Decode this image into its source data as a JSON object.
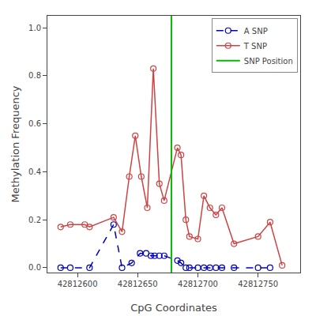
{
  "chart_data": {
    "type": "line",
    "xlabel": "CpG Coordinates",
    "ylabel": "Methylation Frequency",
    "xlim": [
      42812575,
      42812785
    ],
    "ylim": [
      -0.02,
      1.05
    ],
    "xticks": [
      42812600,
      42812650,
      42812700,
      42812750
    ],
    "yticks": [
      {
        "value": 0.0,
        "label": "0.0"
      },
      0.2,
      0.4,
      0.6,
      0.8,
      {
        "value": 1.0,
        "label": "1.0"
      }
    ],
    "grid": false,
    "legend": "upper right",
    "series": [
      {
        "name": "A SNP",
        "type": "line",
        "color": "#0000bb",
        "marker": "open_circle",
        "line_style": "dashed",
        "x": [
          42812586,
          42812594,
          42812610,
          42812630,
          42812637,
          42812645,
          42812652,
          42812657,
          42812661,
          42812664,
          42812668,
          42812672,
          42812683,
          42812686,
          42812690,
          42812693,
          42812700,
          42812705,
          42812710,
          42812715,
          42812720,
          42812730,
          42812750,
          42812760
        ],
        "values": [
          0.0,
          0.0,
          0.0,
          0.18,
          0.0,
          0.02,
          0.06,
          0.06,
          0.05,
          0.05,
          0.05,
          0.05,
          0.03,
          0.02,
          0.0,
          0.0,
          0.0,
          0.0,
          0.0,
          0.0,
          0.0,
          0.0,
          0.0,
          0.0
        ]
      },
      {
        "name": "T SNP",
        "type": "line",
        "color": "#cc4444",
        "marker": "open_circle",
        "line_style": "solid",
        "x": [
          42812586,
          42812594,
          42812606,
          42812610,
          42812630,
          42812637,
          42812643,
          42812648,
          42812653,
          42812658,
          42812663,
          42812668,
          42812672,
          42812683,
          42812686,
          42812690,
          42812693,
          42812700,
          42812705,
          42812710,
          42812715,
          42812720,
          42812730,
          42812750,
          42812760,
          42812770
        ],
        "values": [
          0.17,
          0.18,
          0.18,
          0.17,
          0.21,
          0.15,
          0.38,
          0.55,
          0.38,
          0.25,
          0.83,
          0.35,
          0.28,
          0.5,
          0.47,
          0.2,
          0.13,
          0.12,
          0.3,
          0.25,
          0.22,
          0.25,
          0.1,
          0.13,
          0.19,
          0.01
        ]
      },
      {
        "name": "SNP Position",
        "type": "vline",
        "color": "#00bb00",
        "line_style": "solid",
        "x": 42812678
      }
    ]
  }
}
